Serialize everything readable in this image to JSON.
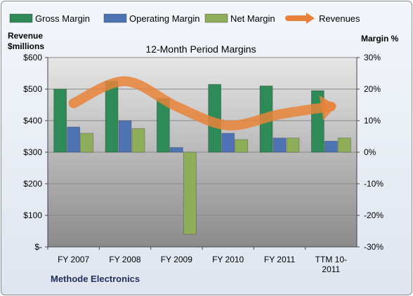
{
  "chart_data": {
    "type": "bar",
    "title": "12-Month Period Margins",
    "company": "Methode Electronics",
    "left_axis_label": [
      "Revenue",
      "$millions"
    ],
    "right_axis_label": "Margin %",
    "categories": [
      "FY 2007",
      "FY 2008",
      "FY 2009",
      "FY 2010",
      "FY 2011",
      "TTM 10-2011"
    ],
    "category_labels": [
      [
        "FY 2007"
      ],
      [
        "FY 2008"
      ],
      [
        "FY 2009"
      ],
      [
        "FY 2010"
      ],
      [
        "FY 2011"
      ],
      [
        "TTM 10-",
        "2011"
      ]
    ],
    "left_axis": {
      "min": 0,
      "max": 600,
      "step": 100,
      "ticks": [
        "$-",
        "$100",
        "$200",
        "$300",
        "$400",
        "$500",
        "$600"
      ]
    },
    "right_axis": {
      "min": -30,
      "max": 30,
      "step": 10,
      "ticks": [
        "-30%",
        "-20%",
        "-10%",
        "0%",
        "10%",
        "20%",
        "30%"
      ]
    },
    "grid": true,
    "legend_position": "top",
    "series": [
      {
        "name": "Gross Margin",
        "axis": "right",
        "kind": "bar",
        "color": "#2e8b57",
        "values": [
          20,
          22.5,
          17,
          21.5,
          21,
          19.5
        ]
      },
      {
        "name": "Operating Margin",
        "axis": "right",
        "kind": "bar",
        "color": "#4f74b3",
        "values": [
          8,
          10,
          1.5,
          6,
          4.5,
          3.5
        ]
      },
      {
        "name": "Net Margin",
        "axis": "right",
        "kind": "bar",
        "color": "#8fae5a",
        "values": [
          6,
          7.5,
          -26,
          4,
          4.5,
          4.5
        ]
      },
      {
        "name": "Revenues",
        "axis": "left",
        "kind": "line",
        "color": "#e8823a",
        "values": [
          455,
          525,
          445,
          385,
          420,
          445
        ]
      }
    ]
  }
}
